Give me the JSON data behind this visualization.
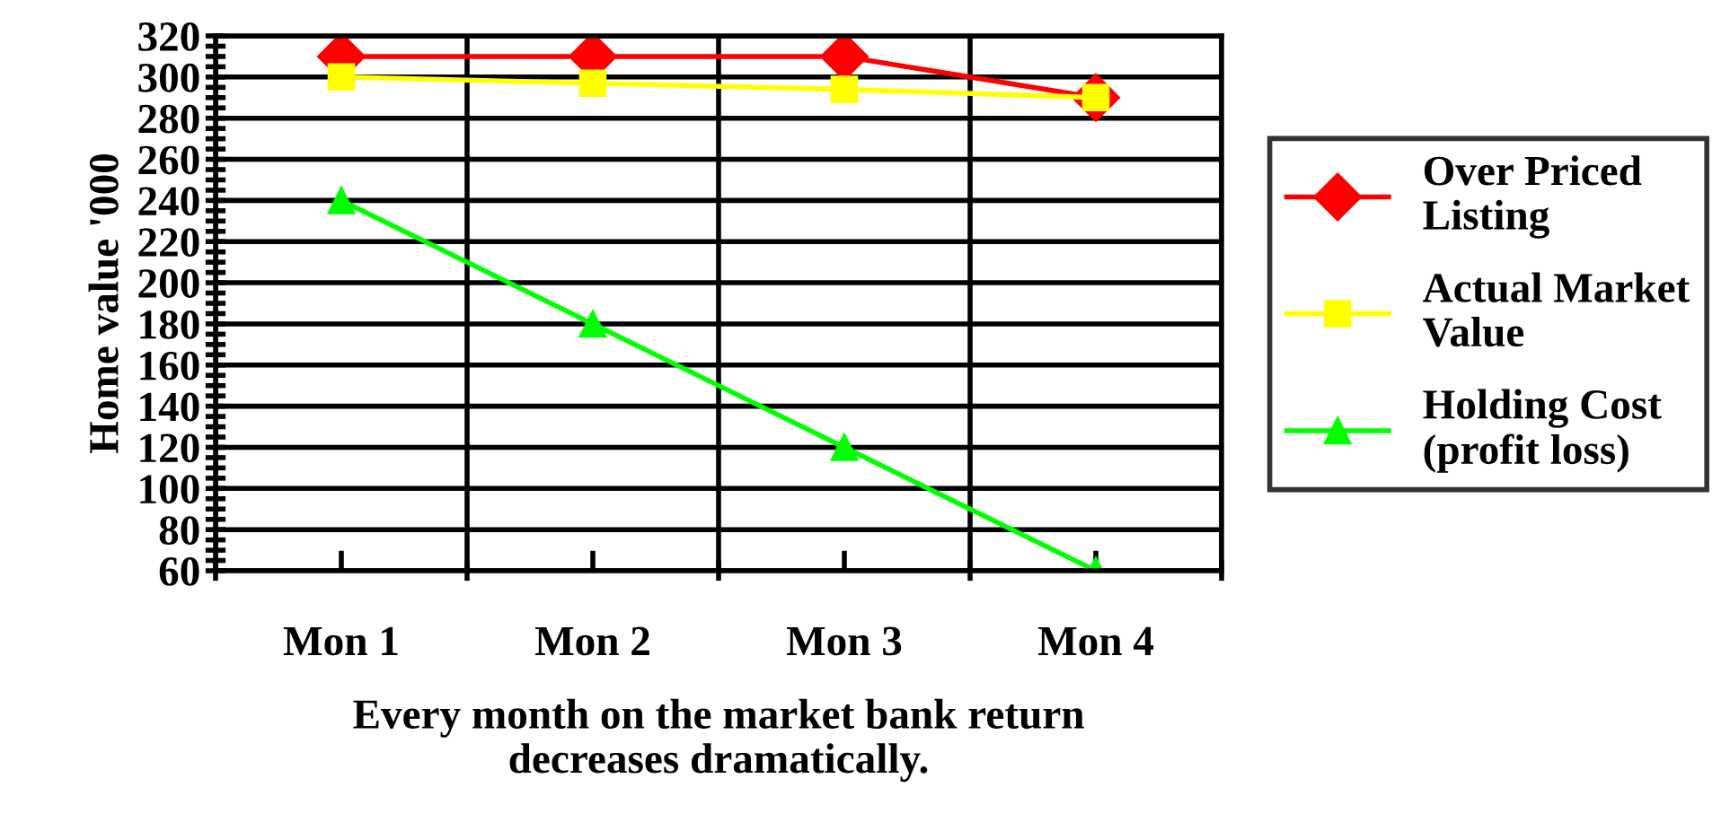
{
  "chart_data": {
    "type": "line",
    "xlabel": "Every month on the market bank return\ndecreases dramatically.",
    "ylabel": "Home value '000",
    "categories": [
      "Mon 1",
      "Mon 2",
      "Mon 3",
      "Mon 4"
    ],
    "series": [
      {
        "name": "Over Priced\nListing",
        "color": "#ff0000",
        "marker": "diamond",
        "values": [
          310,
          310,
          310,
          290
        ]
      },
      {
        "name": "Actual Market\nValue",
        "color": "#ffff00",
        "marker": "square",
        "values": [
          300,
          297,
          294,
          290
        ]
      },
      {
        "name": "Holding Cost\n(profit loss)",
        "color": "#00ff00",
        "marker": "triangle",
        "values": [
          240,
          180,
          120,
          60
        ]
      }
    ],
    "ylim": [
      60,
      320
    ],
    "yticks": [
      60,
      80,
      100,
      120,
      140,
      160,
      180,
      200,
      220,
      240,
      260,
      280,
      300,
      320
    ],
    "grid": true,
    "legend": "right"
  }
}
